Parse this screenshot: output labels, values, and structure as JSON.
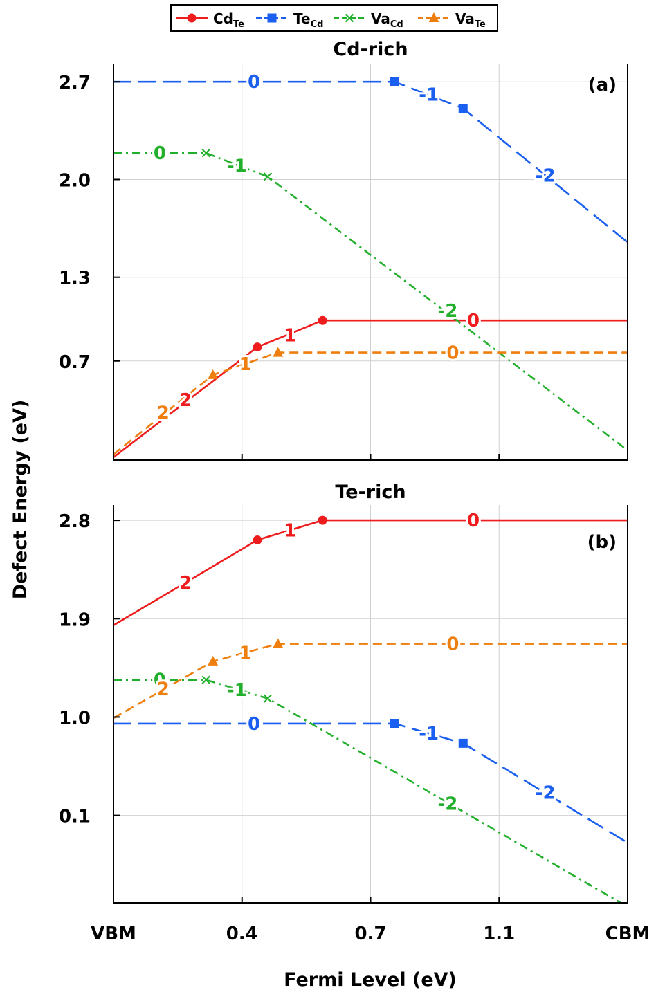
{
  "figure": {
    "ylabel": "Defect Energy (eV)",
    "xlabel": "Fermi Level (eV)",
    "x_tick_labels": [
      "VBM",
      "0.4",
      "0.7",
      "1.1",
      "CBM"
    ],
    "legend": [
      {
        "key": "cd_te",
        "base": "Cd",
        "sub": "Te",
        "color": "#ee1c1c",
        "marker": "circle",
        "dash": "solid"
      },
      {
        "key": "te_cd",
        "base": "Te",
        "sub": "Cd",
        "color": "#1a5ff0",
        "marker": "square",
        "dash": "longdash"
      },
      {
        "key": "va_cd",
        "base": "Va",
        "sub": "Cd",
        "color": "#22b02c",
        "marker": "x",
        "dash": "dashdot"
      },
      {
        "key": "va_te",
        "base": "Va",
        "sub": "Te",
        "color": "#ee7f0e",
        "marker": "triangle",
        "dash": "dash"
      }
    ]
  },
  "chart_data": [
    {
      "type": "line",
      "title": "Cd-rich",
      "panel_label": "(a)",
      "xlabel": "Fermi Level (eV)",
      "ylabel": "Defect Energy (eV)",
      "xlim": [
        0,
        1.5
      ],
      "ylim": [
        -0.01,
        2.83
      ],
      "x_ticks": [
        0,
        0.375,
        0.75,
        1.125,
        1.5
      ],
      "y_ticks": [
        0.7,
        1.3,
        2.0,
        2.7
      ],
      "grid": true,
      "legend_position": "top-center",
      "series": [
        {
          "key": "cd_te",
          "points": [
            [
              0,
              0.01
            ],
            [
              0.42,
              0.8
            ],
            [
              0.61,
              0.99
            ],
            [
              1.5,
              0.99
            ]
          ],
          "markers": [
            [
              0.42,
              0.8
            ],
            [
              0.61,
              0.99
            ]
          ],
          "labels": [
            {
              "text": "2",
              "x": 0.21,
              "y": 0.42
            },
            {
              "text": "1",
              "x": 0.515,
              "y": 0.885
            },
            {
              "text": "0",
              "x": 1.05,
              "y": 0.99
            }
          ]
        },
        {
          "key": "te_cd",
          "points": [
            [
              0,
              2.7
            ],
            [
              0.82,
              2.7
            ],
            [
              1.02,
              2.51
            ],
            [
              1.5,
              1.55
            ]
          ],
          "markers": [
            [
              0.82,
              2.7
            ],
            [
              1.02,
              2.51
            ]
          ],
          "labels": [
            {
              "text": "0",
              "x": 0.41,
              "y": 2.7
            },
            {
              "text": "-1",
              "x": 0.92,
              "y": 2.61
            },
            {
              "text": "-2",
              "x": 1.26,
              "y": 2.03
            }
          ]
        },
        {
          "key": "va_cd",
          "points": [
            [
              0,
              2.19
            ],
            [
              0.27,
              2.19
            ],
            [
              0.45,
              2.02
            ],
            [
              1.5,
              0.06
            ]
          ],
          "markers": [
            [
              0.27,
              2.19
            ],
            [
              0.45,
              2.02
            ]
          ],
          "labels": [
            {
              "text": "0",
              "x": 0.135,
              "y": 2.19
            },
            {
              "text": "-1",
              "x": 0.36,
              "y": 2.1
            },
            {
              "text": "-2",
              "x": 0.975,
              "y": 1.06
            }
          ]
        },
        {
          "key": "va_te",
          "points": [
            [
              0,
              0.03
            ],
            [
              0.29,
              0.6
            ],
            [
              0.48,
              0.76
            ],
            [
              1.5,
              0.76
            ]
          ],
          "markers": [
            [
              0.29,
              0.6
            ],
            [
              0.48,
              0.76
            ]
          ],
          "labels": [
            {
              "text": "2",
              "x": 0.145,
              "y": 0.33
            },
            {
              "text": "1",
              "x": 0.385,
              "y": 0.68
            },
            {
              "text": "0",
              "x": 0.99,
              "y": 0.76
            }
          ]
        }
      ]
    },
    {
      "type": "line",
      "title": "Te-rich",
      "panel_label": "(b)",
      "xlabel": "Fermi Level (eV)",
      "ylabel": "Defect Energy (eV)",
      "xlim": [
        0,
        1.5
      ],
      "ylim": [
        -0.7,
        2.94
      ],
      "x_ticks": [
        0,
        0.375,
        0.75,
        1.125,
        1.5
      ],
      "y_ticks": [
        0.1,
        1.0,
        1.9,
        2.8
      ],
      "grid": true,
      "series": [
        {
          "key": "cd_te",
          "points": [
            [
              0,
              1.84
            ],
            [
              0.42,
              2.62
            ],
            [
              0.61,
              2.8
            ],
            [
              1.5,
              2.8
            ]
          ],
          "markers": [
            [
              0.42,
              2.62
            ],
            [
              0.61,
              2.8
            ]
          ],
          "labels": [
            {
              "text": "2",
              "x": 0.21,
              "y": 2.23
            },
            {
              "text": "1",
              "x": 0.515,
              "y": 2.71
            },
            {
              "text": "0",
              "x": 1.05,
              "y": 2.8
            }
          ]
        },
        {
          "key": "te_cd",
          "points": [
            [
              0,
              0.94
            ],
            [
              0.82,
              0.94
            ],
            [
              1.02,
              0.76
            ],
            [
              1.5,
              -0.15
            ]
          ],
          "markers": [
            [
              0.82,
              0.94
            ],
            [
              1.02,
              0.76
            ]
          ],
          "labels": [
            {
              "text": "0",
              "x": 0.41,
              "y": 0.94
            },
            {
              "text": "-1",
              "x": 0.92,
              "y": 0.85
            },
            {
              "text": "-2",
              "x": 1.26,
              "y": 0.31
            }
          ]
        },
        {
          "key": "va_cd",
          "points": [
            [
              0,
              1.34
            ],
            [
              0.27,
              1.34
            ],
            [
              0.45,
              1.17
            ],
            [
              1.48,
              -0.7
            ]
          ],
          "markers": [
            [
              0.27,
              1.34
            ],
            [
              0.45,
              1.17
            ]
          ],
          "labels": [
            {
              "text": "0",
              "x": 0.135,
              "y": 1.34
            },
            {
              "text": "-1",
              "x": 0.36,
              "y": 1.25
            },
            {
              "text": "-2",
              "x": 0.975,
              "y": 0.21
            }
          ]
        },
        {
          "key": "va_te",
          "points": [
            [
              0,
              0.99
            ],
            [
              0.29,
              1.51
            ],
            [
              0.48,
              1.67
            ],
            [
              1.5,
              1.67
            ]
          ],
          "markers": [
            [
              0.29,
              1.51
            ],
            [
              0.48,
              1.67
            ]
          ],
          "labels": [
            {
              "text": "2",
              "x": 0.145,
              "y": 1.26
            },
            {
              "text": "1",
              "x": 0.385,
              "y": 1.59
            },
            {
              "text": "0",
              "x": 0.99,
              "y": 1.67
            }
          ]
        }
      ]
    }
  ]
}
